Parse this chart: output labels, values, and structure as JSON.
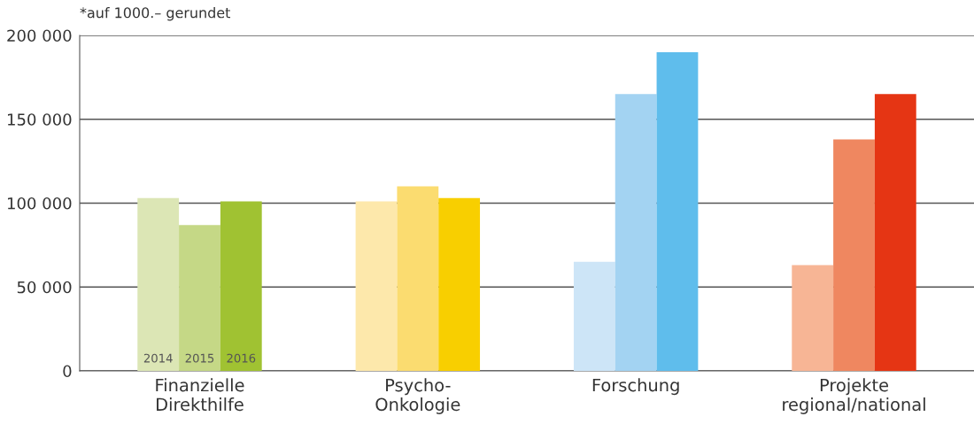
{
  "chart_data": {
    "type": "bar",
    "categories": [
      "Finanzielle\nDirekthilfe",
      "Psycho-\nOnkologie",
      "Forschung",
      "Projekte\nregional/national"
    ],
    "series": [
      {
        "name": "2014",
        "colors": [
          "#dce6b5",
          "#fde8ab",
          "#cde5f7",
          "#f7b595"
        ],
        "values": [
          103000,
          101000,
          65000,
          63000
        ]
      },
      {
        "name": "2015",
        "colors": [
          "#c5d886",
          "#fbdc70",
          "#a3d3f2",
          "#ef8760"
        ],
        "values": [
          87000,
          110000,
          165000,
          138000
        ]
      },
      {
        "name": "2016",
        "colors": [
          "#a0c232",
          "#f8cf00",
          "#5fbdec",
          "#e53514"
        ],
        "values": [
          101000,
          103000,
          190000,
          165000
        ]
      }
    ],
    "ylim": [
      0,
      200000
    ],
    "yticks": [
      0,
      {
        "value": 50000,
        "label": "50 000"
      },
      {
        "value": 100000,
        "label": "100 000"
      },
      {
        "value": 150000,
        "label": "150 000"
      },
      {
        "value": 200000,
        "label": "200 000"
      }
    ],
    "grid": "y",
    "legend": false,
    "annotations": [
      "*auf 1000.– gerundet"
    ]
  }
}
